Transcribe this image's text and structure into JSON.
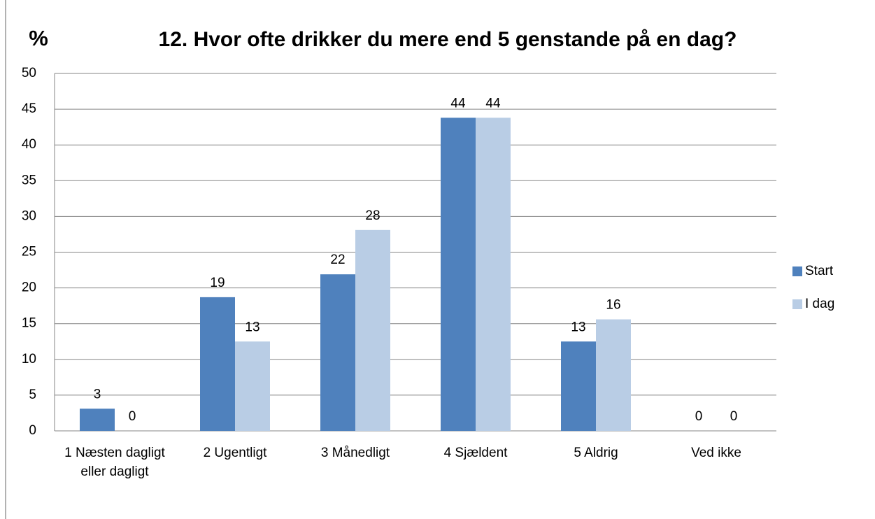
{
  "chart_data": {
    "type": "bar",
    "title": "12. Hvor ofte drikker du mere end 5 genstande på en dag?",
    "y_label": "%",
    "categories": [
      "1 Næsten dagligt eller dagligt",
      "2 Ugentligt",
      "3 Månedligt",
      "4 Sjældent",
      "5 Aldrig",
      "Ved ikke"
    ],
    "series": [
      {
        "name": "Start",
        "color": "#4f81bd",
        "values": [
          3.1,
          18.7,
          21.9,
          43.8,
          12.5,
          0
        ],
        "value_labels": [
          "3",
          "19",
          "22",
          "44",
          "13",
          "0"
        ]
      },
      {
        "name": "I dag",
        "color": "#b9cde5",
        "values": [
          0,
          12.5,
          28.1,
          43.8,
          15.6,
          0
        ],
        "value_labels": [
          "0",
          "13",
          "28",
          "44",
          "16",
          "0"
        ]
      }
    ],
    "ylim": [
      0,
      50
    ],
    "yticks": [
      0,
      5,
      10,
      15,
      20,
      25,
      30,
      35,
      40,
      45,
      50
    ],
    "grid": true,
    "legend": "right"
  }
}
